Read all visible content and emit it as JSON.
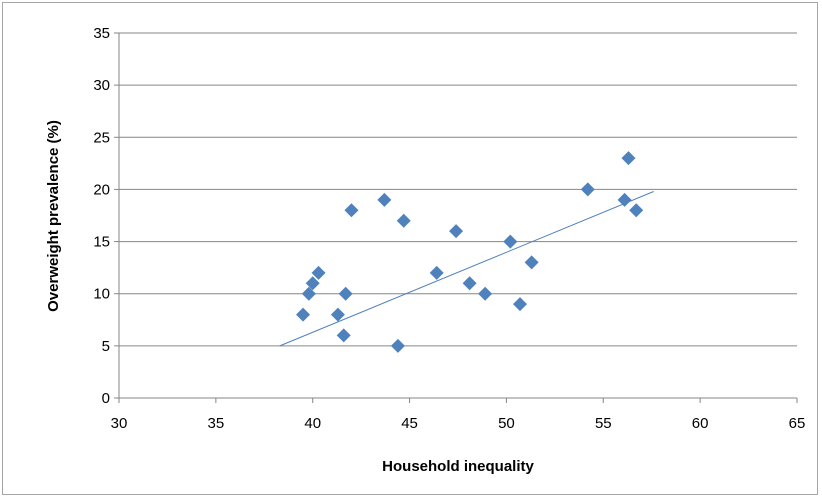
{
  "chart_data": {
    "type": "scatter",
    "title": "",
    "xlabel": "Household inequality",
    "ylabel": "Overweight prevalence (%)",
    "xlim": [
      30,
      65
    ],
    "ylim": [
      0,
      35
    ],
    "xticks": [
      30,
      35,
      40,
      45,
      50,
      55,
      60,
      65
    ],
    "yticks": [
      0,
      5,
      10,
      15,
      20,
      25,
      30,
      35
    ],
    "grid": "horizontal",
    "legend": "none",
    "marker_color": "#4f81bd",
    "trendline_color": "#4f81bd",
    "points": [
      {
        "x": 39.5,
        "y": 8
      },
      {
        "x": 39.8,
        "y": 10
      },
      {
        "x": 40.0,
        "y": 11
      },
      {
        "x": 40.3,
        "y": 12
      },
      {
        "x": 41.3,
        "y": 8
      },
      {
        "x": 41.6,
        "y": 6
      },
      {
        "x": 41.7,
        "y": 10
      },
      {
        "x": 42.0,
        "y": 18
      },
      {
        "x": 43.7,
        "y": 19
      },
      {
        "x": 44.4,
        "y": 5
      },
      {
        "x": 44.7,
        "y": 17
      },
      {
        "x": 46.4,
        "y": 12
      },
      {
        "x": 47.4,
        "y": 16
      },
      {
        "x": 48.1,
        "y": 11
      },
      {
        "x": 48.9,
        "y": 10
      },
      {
        "x": 50.2,
        "y": 15
      },
      {
        "x": 50.7,
        "y": 9
      },
      {
        "x": 51.3,
        "y": 13
      },
      {
        "x": 54.2,
        "y": 20
      },
      {
        "x": 56.1,
        "y": 19
      },
      {
        "x": 56.3,
        "y": 23
      },
      {
        "x": 56.7,
        "y": 18
      }
    ],
    "trendline": {
      "x": [
        38.3,
        57.6
      ],
      "y": [
        5.0,
        19.8
      ]
    }
  }
}
